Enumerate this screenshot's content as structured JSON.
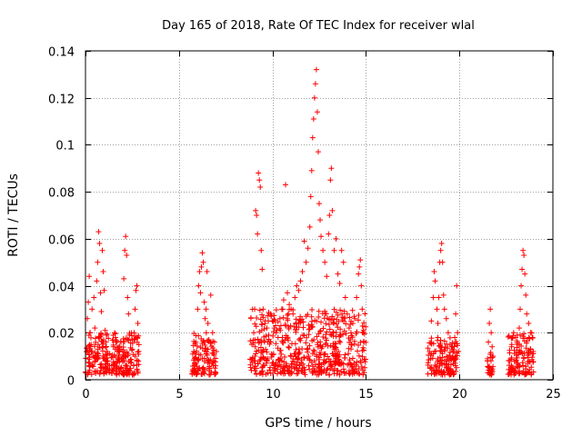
{
  "chart_data": {
    "type": "scatter",
    "title": "Day 165 of 2018, Rate Of TEC Index for receiver wlal",
    "xlabel": "GPS time / hours",
    "ylabel": "ROTI / TECUs",
    "xlim": [
      0,
      25
    ],
    "ylim": [
      0,
      0.14
    ],
    "xticks": [
      0,
      5,
      10,
      15,
      20,
      25
    ],
    "xtick_labels": [
      "0",
      "5",
      "10",
      "15",
      "20",
      "25"
    ],
    "yticks": [
      0,
      0.02,
      0.04,
      0.06,
      0.08,
      0.1,
      0.12,
      0.14
    ],
    "ytick_labels": [
      "0",
      "0.02",
      "0.04",
      "0.06",
      "0.08",
      "0.1",
      "0.12",
      "0.14"
    ],
    "grid": true,
    "marker": "+",
    "series": [
      {
        "name": "ROTI",
        "color": "#ff0000",
        "points": [
          [
            0.05,
            0.012
          ],
          [
            0.1,
            0.026
          ],
          [
            0.15,
            0.033
          ],
          [
            0.2,
            0.044
          ],
          [
            0.25,
            0.02
          ],
          [
            0.3,
            0.015
          ],
          [
            0.35,
            0.03
          ],
          [
            0.4,
            0.01
          ],
          [
            0.45,
            0.035
          ],
          [
            0.5,
            0.022
          ],
          [
            0.55,
            0.009
          ],
          [
            0.6,
            0.042
          ],
          [
            0.65,
            0.05
          ],
          [
            0.7,
            0.063
          ],
          [
            0.75,
            0.058
          ],
          [
            0.8,
            0.037
          ],
          [
            0.85,
            0.029
          ],
          [
            0.9,
            0.055
          ],
          [
            0.95,
            0.046
          ],
          [
            1.0,
            0.038
          ],
          [
            1.05,
            0.021
          ],
          [
            1.1,
            0.016
          ],
          [
            1.15,
            0.012
          ],
          [
            1.2,
            0.008
          ],
          [
            1.3,
            0.011
          ],
          [
            1.4,
            0.006
          ],
          [
            1.5,
            0.014
          ],
          [
            1.6,
            0.018
          ],
          [
            1.7,
            0.012
          ],
          [
            1.8,
            0.009
          ],
          [
            1.9,
            0.016
          ],
          [
            2.0,
            0.012
          ],
          [
            2.05,
            0.043
          ],
          [
            2.1,
            0.055
          ],
          [
            2.15,
            0.061
          ],
          [
            2.2,
            0.053
          ],
          [
            2.25,
            0.035
          ],
          [
            2.3,
            0.028
          ],
          [
            2.35,
            0.019
          ],
          [
            2.5,
            0.013
          ],
          [
            2.6,
            0.02
          ],
          [
            2.65,
            0.03
          ],
          [
            2.7,
            0.038
          ],
          [
            2.75,
            0.04
          ],
          [
            2.8,
            0.024
          ],
          [
            2.85,
            0.012
          ],
          [
            5.8,
            0.012
          ],
          [
            5.9,
            0.016
          ],
          [
            6.0,
            0.03
          ],
          [
            6.05,
            0.04
          ],
          [
            6.1,
            0.046
          ],
          [
            6.15,
            0.037
          ],
          [
            6.2,
            0.048
          ],
          [
            6.25,
            0.054
          ],
          [
            6.3,
            0.05
          ],
          [
            6.35,
            0.033
          ],
          [
            6.4,
            0.026
          ],
          [
            6.45,
            0.03
          ],
          [
            6.5,
            0.046
          ],
          [
            6.55,
            0.024
          ],
          [
            6.6,
            0.017
          ],
          [
            6.7,
            0.036
          ],
          [
            6.8,
            0.02
          ],
          [
            6.9,
            0.016
          ],
          [
            7.0,
            0.012
          ],
          [
            8.9,
            0.015
          ],
          [
            9.0,
            0.02
          ],
          [
            9.05,
            0.03
          ],
          [
            9.1,
            0.072
          ],
          [
            9.15,
            0.07
          ],
          [
            9.2,
            0.062
          ],
          [
            9.25,
            0.088
          ],
          [
            9.3,
            0.085
          ],
          [
            9.35,
            0.082
          ],
          [
            9.4,
            0.055
          ],
          [
            9.45,
            0.047
          ],
          [
            9.5,
            0.03
          ],
          [
            9.6,
            0.024
          ],
          [
            9.7,
            0.022
          ],
          [
            9.8,
            0.019
          ],
          [
            9.9,
            0.028
          ],
          [
            10.0,
            0.025
          ],
          [
            10.1,
            0.022
          ],
          [
            10.2,
            0.02
          ],
          [
            10.3,
            0.018
          ],
          [
            10.4,
            0.026
          ],
          [
            10.5,
            0.03
          ],
          [
            10.6,
            0.034
          ],
          [
            10.7,
            0.083
          ],
          [
            10.8,
            0.037
          ],
          [
            10.9,
            0.032
          ],
          [
            11.0,
            0.03
          ],
          [
            11.1,
            0.028
          ],
          [
            11.2,
            0.035
          ],
          [
            11.3,
            0.04
          ],
          [
            11.4,
            0.038
          ],
          [
            11.5,
            0.042
          ],
          [
            11.6,
            0.046
          ],
          [
            11.7,
            0.059
          ],
          [
            11.8,
            0.05
          ],
          [
            11.9,
            0.056
          ],
          [
            12.0,
            0.065
          ],
          [
            12.05,
            0.078
          ],
          [
            12.1,
            0.089
          ],
          [
            12.15,
            0.103
          ],
          [
            12.2,
            0.111
          ],
          [
            12.25,
            0.12
          ],
          [
            12.3,
            0.126
          ],
          [
            12.35,
            0.132
          ],
          [
            12.4,
            0.114
          ],
          [
            12.45,
            0.097
          ],
          [
            12.5,
            0.075
          ],
          [
            12.55,
            0.068
          ],
          [
            12.6,
            0.061
          ],
          [
            12.7,
            0.055
          ],
          [
            12.8,
            0.05
          ],
          [
            12.9,
            0.044
          ],
          [
            13.0,
            0.062
          ],
          [
            13.05,
            0.07
          ],
          [
            13.1,
            0.085
          ],
          [
            13.15,
            0.09
          ],
          [
            13.2,
            0.072
          ],
          [
            13.3,
            0.055
          ],
          [
            13.4,
            0.06
          ],
          [
            13.5,
            0.045
          ],
          [
            13.6,
            0.041
          ],
          [
            13.7,
            0.055
          ],
          [
            13.8,
            0.05
          ],
          [
            13.9,
            0.035
          ],
          [
            14.0,
            0.028
          ],
          [
            14.1,
            0.022
          ],
          [
            14.2,
            0.02
          ],
          [
            14.3,
            0.024
          ],
          [
            14.4,
            0.026
          ],
          [
            14.5,
            0.035
          ],
          [
            14.6,
            0.045
          ],
          [
            14.65,
            0.048
          ],
          [
            14.7,
            0.051
          ],
          [
            14.75,
            0.04
          ],
          [
            14.8,
            0.03
          ],
          [
            14.85,
            0.02
          ],
          [
            14.9,
            0.016
          ],
          [
            18.4,
            0.012
          ],
          [
            18.5,
            0.025
          ],
          [
            18.6,
            0.035
          ],
          [
            18.65,
            0.046
          ],
          [
            18.7,
            0.042
          ],
          [
            18.8,
            0.03
          ],
          [
            18.85,
            0.024
          ],
          [
            18.9,
            0.035
          ],
          [
            18.95,
            0.05
          ],
          [
            19.0,
            0.055
          ],
          [
            19.05,
            0.058
          ],
          [
            19.1,
            0.05
          ],
          [
            19.15,
            0.036
          ],
          [
            19.2,
            0.03
          ],
          [
            19.3,
            0.026
          ],
          [
            19.4,
            0.02
          ],
          [
            19.5,
            0.015
          ],
          [
            19.7,
            0.012
          ],
          [
            19.75,
            0.018
          ],
          [
            19.8,
            0.028
          ],
          [
            19.85,
            0.04
          ],
          [
            19.9,
            0.02
          ],
          [
            19.95,
            0.012
          ],
          [
            21.5,
            0.008
          ],
          [
            21.55,
            0.016
          ],
          [
            21.6,
            0.024
          ],
          [
            21.65,
            0.03
          ],
          [
            21.7,
            0.02
          ],
          [
            21.75,
            0.014
          ],
          [
            21.8,
            0.01
          ],
          [
            22.7,
            0.008
          ],
          [
            22.8,
            0.015
          ],
          [
            22.9,
            0.02
          ],
          [
            23.0,
            0.018
          ],
          [
            23.1,
            0.015
          ],
          [
            23.2,
            0.022
          ],
          [
            23.25,
            0.03
          ],
          [
            23.3,
            0.04
          ],
          [
            23.35,
            0.047
          ],
          [
            23.4,
            0.055
          ],
          [
            23.45,
            0.053
          ],
          [
            23.5,
            0.045
          ],
          [
            23.55,
            0.036
          ],
          [
            23.6,
            0.028
          ],
          [
            23.7,
            0.024
          ],
          [
            23.8,
            0.02
          ],
          [
            23.9,
            0.018
          ],
          [
            23.95,
            0.012
          ]
        ],
        "bands": [
          [
            0.0,
            2.9,
            0.002,
            0.02
          ],
          [
            5.7,
            7.0,
            0.002,
            0.02
          ],
          [
            8.8,
            15.0,
            0.002,
            0.03
          ],
          [
            18.3,
            19.9,
            0.002,
            0.018
          ],
          [
            21.5,
            21.8,
            0.002,
            0.012
          ],
          [
            22.6,
            24.0,
            0.002,
            0.02
          ]
        ]
      }
    ]
  }
}
